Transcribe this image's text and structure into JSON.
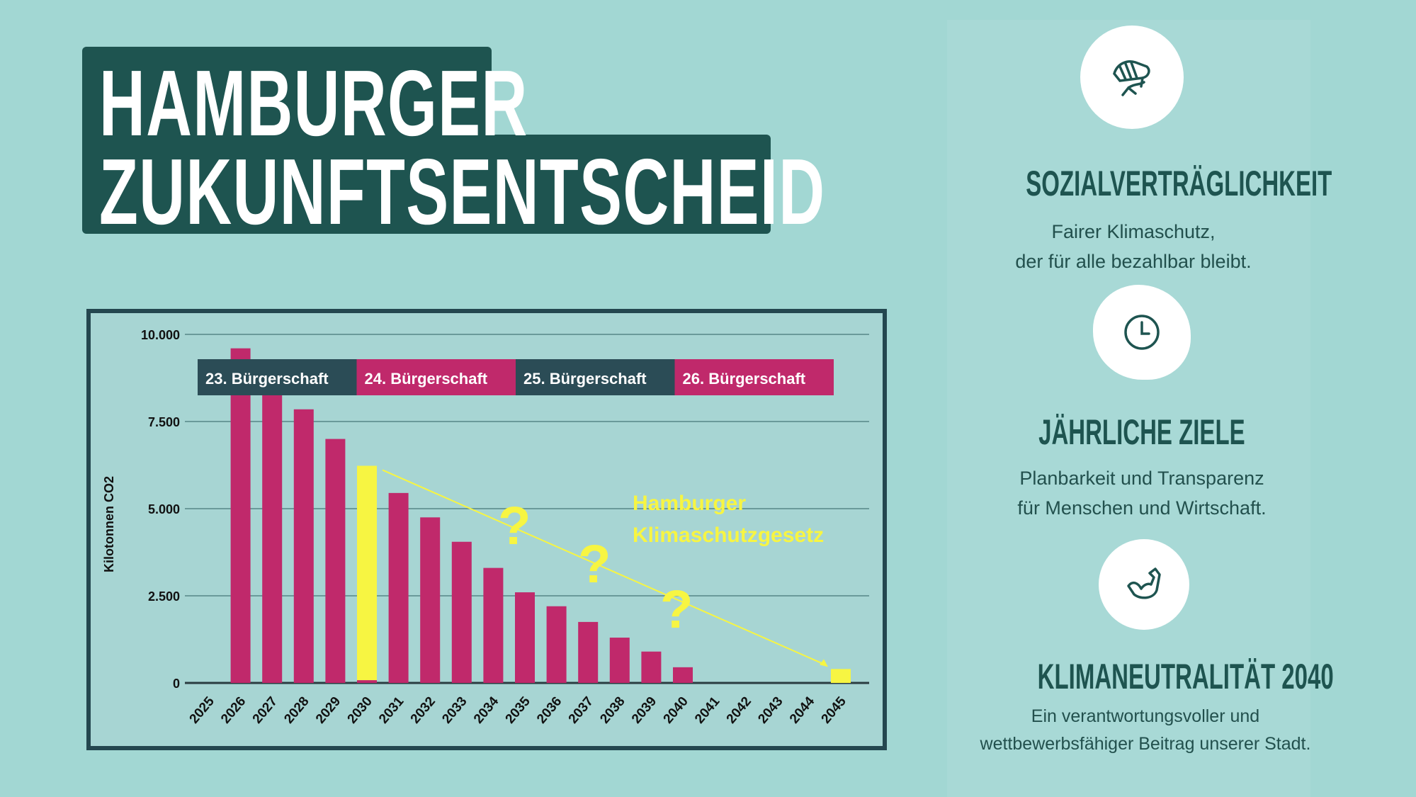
{
  "header": {
    "title_line1": "HAMBURGER",
    "title_line2": "ZUKUNFTSENTSCHEID"
  },
  "colors": {
    "background": "#a2d7d3",
    "dark_green": "#1e5450",
    "magenta": "#c0296b",
    "yellow": "#f7f542",
    "banner_dark": "#2b4c56"
  },
  "features": [
    {
      "icon": "handshake-icon",
      "title": "SOZIALVERTRÄGLICHKEIT",
      "line1": "Fairer Klimaschutz,",
      "line2": "der für alle bezahlbar bleibt."
    },
    {
      "icon": "clock-icon",
      "title": "JÄHRLICHE ZIELE",
      "line1": "Planbarkeit und Transparenz",
      "line2": "für Menschen und Wirtschaft."
    },
    {
      "icon": "flexed-arm-icon",
      "title": "KLIMANEUTRALITÄT 2040",
      "line1": "Ein verantwortungsvoller und",
      "line2": "wettbewerbsfähiger Beitrag unserer Stadt."
    }
  ],
  "chart_data": {
    "type": "bar",
    "ylabel": "Kilotonnen CO2",
    "ylim": [
      0,
      10000
    ],
    "yticks": [
      "0",
      "2.500",
      "5.000",
      "7.500",
      "10.000"
    ],
    "ytick_values": [
      0,
      2500,
      5000,
      7500,
      10000
    ],
    "grid": true,
    "categories": [
      "2025",
      "2026",
      "2027",
      "2028",
      "2029",
      "2030",
      "2031",
      "2032",
      "2033",
      "2034",
      "2035",
      "2036",
      "2037",
      "2038",
      "2039",
      "2040",
      "2041",
      "2042",
      "2043",
      "2044",
      "2045"
    ],
    "series": [
      {
        "color": "#c0296b",
        "values": [
          0,
          9600,
          8700,
          7850,
          7000,
          80,
          5450,
          4750,
          4050,
          3300,
          2600,
          2200,
          1750,
          1300,
          900,
          450,
          0,
          0,
          0,
          0,
          0
        ]
      },
      {
        "color": "#f7f542",
        "values": [
          0,
          0,
          0,
          0,
          0,
          6150,
          0,
          0,
          0,
          0,
          0,
          0,
          0,
          0,
          0,
          0,
          0,
          0,
          0,
          0,
          400
        ]
      }
    ],
    "trend_line": {
      "from": [
        "2030",
        6150
      ],
      "to": [
        "2045",
        400
      ],
      "color": "#f7f542"
    },
    "periods": [
      {
        "label": "23. Bürgerschaft",
        "color": "#2b4c56"
      },
      {
        "label": "24. Bürgerschaft",
        "color": "#c0296b"
      },
      {
        "label": "25. Bürgerschaft",
        "color": "#2b4c56"
      },
      {
        "label": "26. Bürgerschaft",
        "color": "#c0296b"
      }
    ],
    "annotation_line1": "Hamburger",
    "annotation_line2": "Klimaschutzgesetz",
    "question_marks": [
      "?",
      "?",
      "?"
    ]
  }
}
